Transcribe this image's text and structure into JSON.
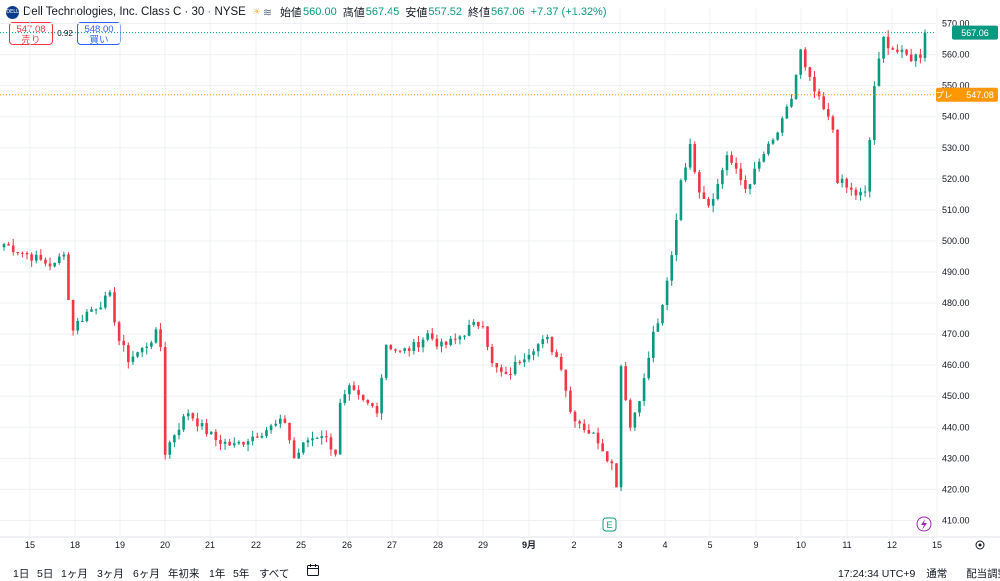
{
  "header": {
    "logo_text": "DELL",
    "symbol": "Dell Technologies, Inc. Class C · 30 · NYSE",
    "open_label": "始値",
    "open": "560.00",
    "high_label": "高値",
    "high": "567.45",
    "low_label": "安値",
    "low": "557.52",
    "close_label": "終値",
    "close": "567.06",
    "change": "+7.37 (+1.32%)"
  },
  "trade": {
    "sell_price": "547.08",
    "sell_label": "売り",
    "spread": "0.92",
    "buy_price": "548.00",
    "buy_label": "買い"
  },
  "price_badges": {
    "last": "567.06",
    "pre_label": "プレ",
    "pre": "547.08"
  },
  "colors": {
    "up": "#089981",
    "down": "#f23645",
    "pre": "#ff9800",
    "grid": "#eef0f3"
  },
  "chart_data": {
    "type": "candlestick",
    "title": "Dell Technologies, Inc. Class C · 30 · NYSE",
    "ylim": [
      405,
      575
    ],
    "y_ticks": [
      410,
      420,
      430,
      440,
      450,
      460,
      470,
      480,
      490,
      500,
      510,
      520,
      530,
      540,
      550,
      560,
      570,
      580
    ],
    "x_ticks": [
      "15",
      "18",
      "19",
      "20",
      "21",
      "22",
      "25",
      "26",
      "27",
      "28",
      "29",
      "9月",
      "2",
      "3",
      "4",
      "5",
      "9",
      "10",
      "11",
      "12",
      "15"
    ],
    "last_price": 567.06,
    "premarket_price": 547.08,
    "grid": true,
    "events": [
      "E",
      "dividend-bolt"
    ],
    "anchors": [
      [
        0,
        499
      ],
      [
        3,
        497
      ],
      [
        6,
        495
      ],
      [
        9,
        493
      ],
      [
        11,
        492
      ],
      [
        13,
        497
      ],
      [
        14,
        481
      ],
      [
        15,
        472
      ],
      [
        18,
        477
      ],
      [
        21,
        480
      ],
      [
        23,
        482
      ],
      [
        25,
        468
      ],
      [
        27,
        462
      ],
      [
        30,
        465
      ],
      [
        33,
        470
      ],
      [
        34,
        466
      ],
      [
        35,
        432
      ],
      [
        37,
        438
      ],
      [
        40,
        445
      ],
      [
        43,
        440
      ],
      [
        46,
        436
      ],
      [
        50,
        434
      ],
      [
        55,
        438
      ],
      [
        58,
        440
      ],
      [
        61,
        442
      ],
      [
        63,
        430
      ],
      [
        66,
        436
      ],
      [
        69,
        438
      ],
      [
        72,
        432
      ],
      [
        73,
        447
      ],
      [
        75,
        452
      ],
      [
        78,
        448
      ],
      [
        81,
        446
      ],
      [
        83,
        467
      ],
      [
        86,
        464
      ],
      [
        89,
        466
      ],
      [
        92,
        470
      ],
      [
        95,
        466
      ],
      [
        98,
        468
      ],
      [
        101,
        472
      ],
      [
        104,
        474
      ],
      [
        106,
        460
      ],
      [
        109,
        456
      ],
      [
        112,
        462
      ],
      [
        115,
        466
      ],
      [
        118,
        468
      ],
      [
        121,
        460
      ],
      [
        123,
        445
      ],
      [
        126,
        440
      ],
      [
        129,
        436
      ],
      [
        132,
        428
      ],
      [
        133,
        422
      ],
      [
        134,
        460
      ],
      [
        136,
        440
      ],
      [
        139,
        455
      ],
      [
        141,
        470
      ],
      [
        143,
        478
      ],
      [
        145,
        495
      ],
      [
        147,
        520
      ],
      [
        149,
        530
      ],
      [
        151,
        517
      ],
      [
        153,
        512
      ],
      [
        155,
        518
      ],
      [
        157,
        528
      ],
      [
        159,
        522
      ],
      [
        161,
        517
      ],
      [
        163,
        522
      ],
      [
        165,
        528
      ],
      [
        167,
        532
      ],
      [
        169,
        538
      ],
      [
        171,
        546
      ],
      [
        173,
        561
      ],
      [
        174,
        555
      ],
      [
        176,
        548
      ],
      [
        178,
        542
      ],
      [
        180,
        536
      ],
      [
        181,
        520
      ],
      [
        183,
        517
      ],
      [
        185,
        515
      ],
      [
        187,
        515
      ],
      [
        189,
        550
      ],
      [
        191,
        565
      ],
      [
        193,
        562
      ],
      [
        195,
        560
      ],
      [
        197,
        559
      ],
      [
        199,
        560
      ],
      [
        200,
        567.06
      ]
    ],
    "bars": 201
  }
}
